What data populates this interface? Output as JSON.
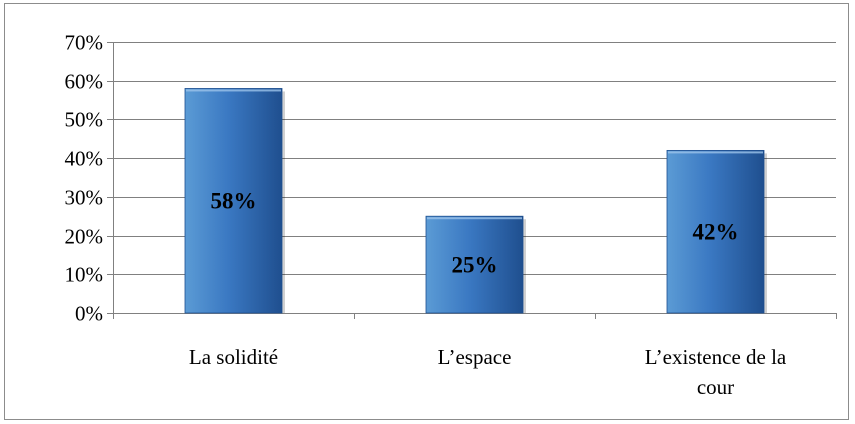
{
  "chart_data": {
    "type": "bar",
    "title": "",
    "xlabel": "",
    "ylabel": "",
    "categories": [
      "La solidité",
      "L’espace",
      "L’existence de la cour"
    ],
    "category_lines": [
      [
        "La solidité"
      ],
      [
        "L’espace"
      ],
      [
        "L’existence de la",
        "cour"
      ]
    ],
    "values": [
      58,
      25,
      42
    ],
    "data_labels": [
      "58%",
      "25%",
      "42%"
    ],
    "ylim": [
      0,
      70
    ],
    "y_ticks": [
      0,
      10,
      20,
      30,
      40,
      50,
      60,
      70
    ],
    "y_tick_labels": [
      "0%",
      "10%",
      "20%",
      "30%",
      "40%",
      "50%",
      "60%",
      "70%"
    ],
    "grid": true,
    "legend": "none",
    "colors": {
      "bar_light": "#5b9bd5",
      "bar_mid": "#3a78c2",
      "bar_dark": "#1f4f8f",
      "grid": "#808080",
      "axis": "#808080"
    }
  }
}
